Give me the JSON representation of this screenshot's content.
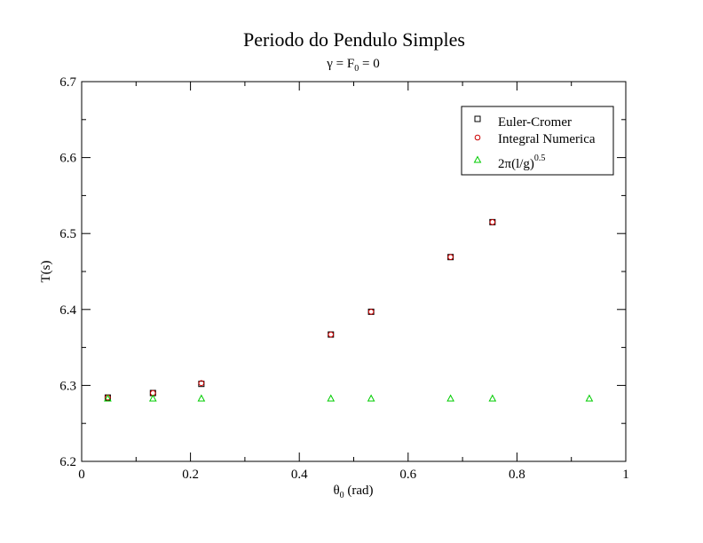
{
  "chart_data": {
    "type": "scatter",
    "title": "Periodo do Pendulo Simples",
    "subtitle": {
      "gamma": "γ",
      "eq1": " = F",
      "sub": "0",
      "eq2": " = 0"
    },
    "xlabel": {
      "main": "θ",
      "sub": "0",
      "rest": " (rad)"
    },
    "ylabel": "T(s)",
    "xlim": [
      0,
      1
    ],
    "ylim": [
      6.2,
      6.7
    ],
    "x_ticks": [
      "0",
      "0.2",
      "0.4",
      "0.6",
      "0.8",
      "1"
    ],
    "y_ticks": [
      "6.2",
      "6.3",
      "6.4",
      "6.5",
      "6.6",
      "6.7"
    ],
    "legend_position": "top-right",
    "series": [
      {
        "name": "Euler-Cromer",
        "marker": "square",
        "color": "#000000",
        "points": [
          [
            0.048,
            6.284
          ],
          [
            0.131,
            6.29
          ],
          [
            0.22,
            6.302
          ],
          [
            0.458,
            6.367
          ],
          [
            0.532,
            6.397
          ],
          [
            0.678,
            6.469
          ],
          [
            0.755,
            6.515
          ]
        ]
      },
      {
        "name": "Integral Numerica",
        "marker": "circle",
        "color": "#cc0000",
        "points": [
          [
            0.048,
            6.284
          ],
          [
            0.131,
            6.29
          ],
          [
            0.22,
            6.303
          ],
          [
            0.458,
            6.367
          ],
          [
            0.532,
            6.397
          ],
          [
            0.678,
            6.469
          ],
          [
            0.755,
            6.515
          ]
        ]
      },
      {
        "name_parts": {
          "main": "2π(l/g)",
          "sup": "0.5"
        },
        "marker": "triangle",
        "color": "#00cc00",
        "points": [
          [
            0.048,
            6.283
          ],
          [
            0.131,
            6.283
          ],
          [
            0.22,
            6.283
          ],
          [
            0.458,
            6.283
          ],
          [
            0.532,
            6.283
          ],
          [
            0.678,
            6.283
          ],
          [
            0.755,
            6.283
          ],
          [
            0.933,
            6.283
          ]
        ]
      }
    ]
  }
}
